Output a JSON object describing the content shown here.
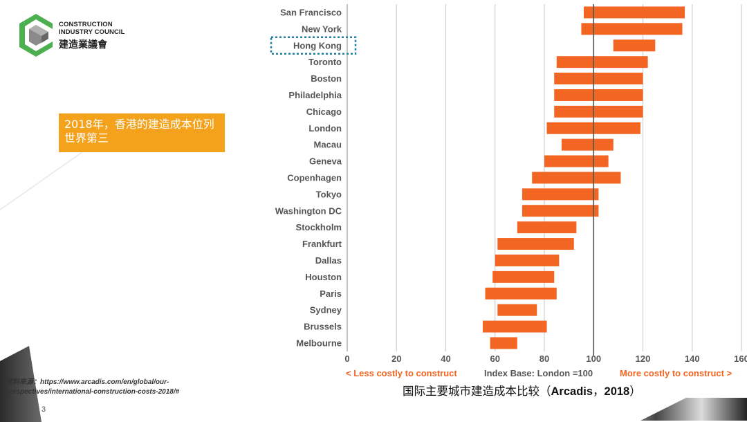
{
  "logo": {
    "line1": "CONSTRUCTION",
    "line2": "INDUSTRY COUNCIL",
    "zh": "建造業議會"
  },
  "callout": {
    "text": "2018年，香港的建造成本位列世界第三",
    "color": "#f4a11c"
  },
  "source": {
    "text": "資料來源：https://www.arcadis.com/en/global/our-perspectives/international-construction-costs-2018/#"
  },
  "page_number": "3",
  "caption": {
    "zh": "国际主要城市建造成本比较",
    "open": "（",
    "org": "Arcadis",
    "sep": "，",
    "year": "2018",
    "close": "）"
  },
  "chart_data": {
    "type": "bar",
    "orientation": "horizontal-range",
    "bar_color": "#f26522",
    "highlight": "Hong Kong",
    "highlight_color": "#1e7ea1",
    "reference_line": 100,
    "xlim": [
      0,
      160
    ],
    "xticks": [
      0,
      20,
      40,
      60,
      80,
      100,
      120,
      140,
      160
    ],
    "grid": true,
    "less_label": "< Less costly to construct",
    "base_label": "Index Base: London =100",
    "more_label": "More costly to construct >",
    "less_color": "#f26522",
    "more_color": "#f26522",
    "cities": [
      {
        "name": "San Francisco",
        "low": 96,
        "high": 137
      },
      {
        "name": "New York",
        "low": 95,
        "high": 136
      },
      {
        "name": "Hong Kong",
        "low": 108,
        "high": 125
      },
      {
        "name": "Toronto",
        "low": 85,
        "high": 122
      },
      {
        "name": "Boston",
        "low": 84,
        "high": 120
      },
      {
        "name": "Philadelphia",
        "low": 84,
        "high": 120
      },
      {
        "name": "Chicago",
        "low": 84,
        "high": 120
      },
      {
        "name": "London",
        "low": 81,
        "high": 119
      },
      {
        "name": "Macau",
        "low": 87,
        "high": 108
      },
      {
        "name": "Geneva",
        "low": 80,
        "high": 106
      },
      {
        "name": "Copenhagen",
        "low": 75,
        "high": 111
      },
      {
        "name": "Tokyo",
        "low": 71,
        "high": 102
      },
      {
        "name": "Washington DC",
        "low": 71,
        "high": 102
      },
      {
        "name": "Stockholm",
        "low": 69,
        "high": 93
      },
      {
        "name": "Frankfurt",
        "low": 61,
        "high": 92
      },
      {
        "name": "Dallas",
        "low": 60,
        "high": 86
      },
      {
        "name": "Houston",
        "low": 59,
        "high": 84
      },
      {
        "name": "Paris",
        "low": 56,
        "high": 85
      },
      {
        "name": "Sydney",
        "low": 61,
        "high": 77
      },
      {
        "name": "Brussels",
        "low": 55,
        "high": 81
      },
      {
        "name": "Melbourne",
        "low": 58,
        "high": 69
      }
    ]
  }
}
